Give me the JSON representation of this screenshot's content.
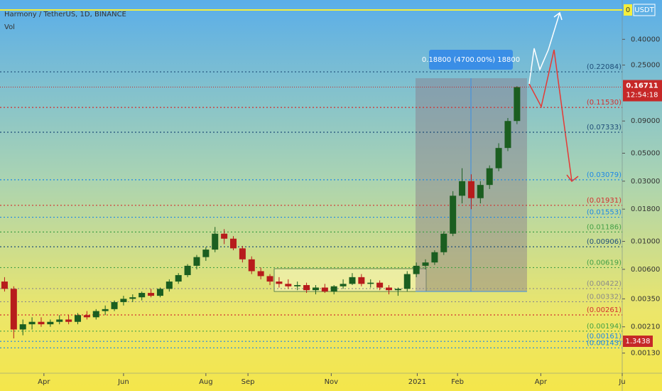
{
  "chart_data": {
    "type": "candlestick",
    "title": "Harmony / TetherUS, 1D, BINANCE",
    "subtitle": "Vol",
    "currency": "USDT",
    "top_label": "0",
    "log_scale": true,
    "up_color": "#1b5e20",
    "down_color": "#b71c1c",
    "ylim": [
      0.0009,
      0.82
    ],
    "yticks": [
      {
        "value": 0.4,
        "label": "0.40000"
      },
      {
        "value": 0.25,
        "label": "0.25000"
      },
      {
        "value": 0.09,
        "label": "0.09000"
      },
      {
        "value": 0.05,
        "label": "0.05000"
      },
      {
        "value": 0.03,
        "label": "0.03000"
      },
      {
        "value": 0.018,
        "label": "0.01800"
      },
      {
        "value": 0.01,
        "label": "0.01000"
      },
      {
        "value": 0.006,
        "label": "0.00600"
      },
      {
        "value": 0.0035,
        "label": "0.00350"
      },
      {
        "value": 0.0021,
        "label": "0.00210"
      },
      {
        "value": 0.0013,
        "label": "0.00130"
      }
    ],
    "xlim": [
      0,
      68
    ],
    "xticks": [
      {
        "value": 4.8,
        "label": "Apr"
      },
      {
        "value": 13.5,
        "label": "Jun"
      },
      {
        "value": 22.5,
        "label": "Aug"
      },
      {
        "value": 27.1,
        "label": "Sep"
      },
      {
        "value": 36.2,
        "label": "Nov"
      },
      {
        "value": 45.6,
        "label": "2021"
      },
      {
        "value": 50,
        "label": "Feb"
      },
      {
        "value": 59.1,
        "label": "Apr"
      },
      {
        "value": 68,
        "label": "Ju"
      }
    ],
    "open": [
      0.0048,
      0.0042,
      0.002,
      0.0022,
      0.0023,
      0.0022,
      0.0023,
      0.0024,
      0.0023,
      0.0026,
      0.0025,
      0.0028,
      0.0029,
      0.0033,
      0.0035,
      0.0036,
      0.0039,
      0.0037,
      0.0042,
      0.0048,
      0.0054,
      0.0064,
      0.0075,
      0.0086,
      0.0115,
      0.0105,
      0.0088,
      0.0072,
      0.0058,
      0.0053,
      0.0048,
      0.0046,
      0.0044,
      0.0045,
      0.0041,
      0.0043,
      0.004,
      0.0044,
      0.0046,
      0.0052,
      0.0046,
      0.0047,
      0.0043,
      0.0041,
      0.0042,
      0.0055,
      0.0064,
      0.0068,
      0.0082,
      0.0115,
      0.023,
      0.03,
      0.022,
      0.028,
      0.038,
      0.055,
      0.09
    ],
    "high": [
      0.0052,
      0.0044,
      0.0024,
      0.0025,
      0.0025,
      0.0024,
      0.0026,
      0.0026,
      0.0027,
      0.0028,
      0.0029,
      0.0031,
      0.0034,
      0.0037,
      0.0038,
      0.004,
      0.0042,
      0.0043,
      0.005,
      0.0056,
      0.0066,
      0.0078,
      0.009,
      0.013,
      0.0125,
      0.011,
      0.0092,
      0.0076,
      0.0062,
      0.0055,
      0.0052,
      0.005,
      0.0048,
      0.0047,
      0.0045,
      0.0046,
      0.0045,
      0.005,
      0.0056,
      0.0055,
      0.005,
      0.0049,
      0.0045,
      0.0043,
      0.0058,
      0.0068,
      0.0072,
      0.0085,
      0.012,
      0.025,
      0.038,
      0.034,
      0.03,
      0.04,
      0.06,
      0.095,
      0.17
    ],
    "low": [
      0.004,
      0.0017,
      0.0018,
      0.002,
      0.0021,
      0.0021,
      0.0022,
      0.0022,
      0.0022,
      0.0024,
      0.0024,
      0.0026,
      0.0028,
      0.0031,
      0.0033,
      0.0034,
      0.0036,
      0.0036,
      0.004,
      0.0046,
      0.0052,
      0.006,
      0.007,
      0.0082,
      0.0095,
      0.0085,
      0.0068,
      0.0055,
      0.005,
      0.0045,
      0.0043,
      0.0042,
      0.0041,
      0.0039,
      0.0038,
      0.0039,
      0.0038,
      0.0042,
      0.0045,
      0.0044,
      0.0043,
      0.0041,
      0.0038,
      0.0037,
      0.004,
      0.0052,
      0.006,
      0.0065,
      0.0078,
      0.011,
      0.02,
      0.018,
      0.02,
      0.026,
      0.036,
      0.052,
      0.085
    ],
    "close": [
      0.0042,
      0.002,
      0.0022,
      0.0023,
      0.0022,
      0.0023,
      0.0024,
      0.0023,
      0.0026,
      0.0025,
      0.0028,
      0.0029,
      0.0033,
      0.0035,
      0.0036,
      0.0039,
      0.0037,
      0.0042,
      0.0048,
      0.0054,
      0.0064,
      0.0075,
      0.0086,
      0.0115,
      0.0105,
      0.0088,
      0.0072,
      0.0058,
      0.0053,
      0.0048,
      0.0046,
      0.0044,
      0.0045,
      0.0041,
      0.0043,
      0.004,
      0.0044,
      0.0046,
      0.0052,
      0.0046,
      0.0047,
      0.0043,
      0.0041,
      0.0042,
      0.0055,
      0.0064,
      0.0068,
      0.0082,
      0.0115,
      0.023,
      0.03,
      0.022,
      0.028,
      0.038,
      0.055,
      0.09,
      0.1671
    ],
    "levels": [
      {
        "value": 0.22084,
        "label": "(0.22084)",
        "color": "#1f4e79"
      },
      {
        "value": 0.1153,
        "label": "(0.11530)",
        "color": "#d32f2f"
      },
      {
        "value": 0.07333,
        "label": "(0.07333)",
        "color": "#1f4e79"
      },
      {
        "value": 0.03079,
        "label": "(0.03079)",
        "color": "#1e88e5"
      },
      {
        "value": 0.01931,
        "label": "(0.01931)",
        "color": "#d32f2f"
      },
      {
        "value": 0.01553,
        "label": "(0.01553)",
        "color": "#1e88e5"
      },
      {
        "value": 0.01186,
        "label": "(0.01186)",
        "color": "#43a047"
      },
      {
        "value": 0.00906,
        "label": "(0.00906)",
        "color": "#1f4e79"
      },
      {
        "value": 0.00619,
        "label": "(0.00619)",
        "color": "#43a047"
      },
      {
        "value": 0.00422,
        "label": "(0.00422)",
        "color": "#8a8a8a"
      },
      {
        "value": 0.00332,
        "label": "(0.00332)",
        "color": "#8a8a8a"
      },
      {
        "value": 0.00261,
        "label": "(0.00261)",
        "color": "#d32f2f"
      },
      {
        "value": 0.00194,
        "label": "(0.00194)",
        "color": "#43a047"
      },
      {
        "value": 0.00161,
        "label": "(0.00161)",
        "color": "#1e88e5"
      },
      {
        "value": 0.00143,
        "label": "(0.00143)",
        "color": "#1e88e5"
      }
    ],
    "last_price": 0.16711,
    "countdown": "12:54:18",
    "volume_last": 1.3438,
    "measure_label": "0.18800 (4700.00%) 18800"
  }
}
